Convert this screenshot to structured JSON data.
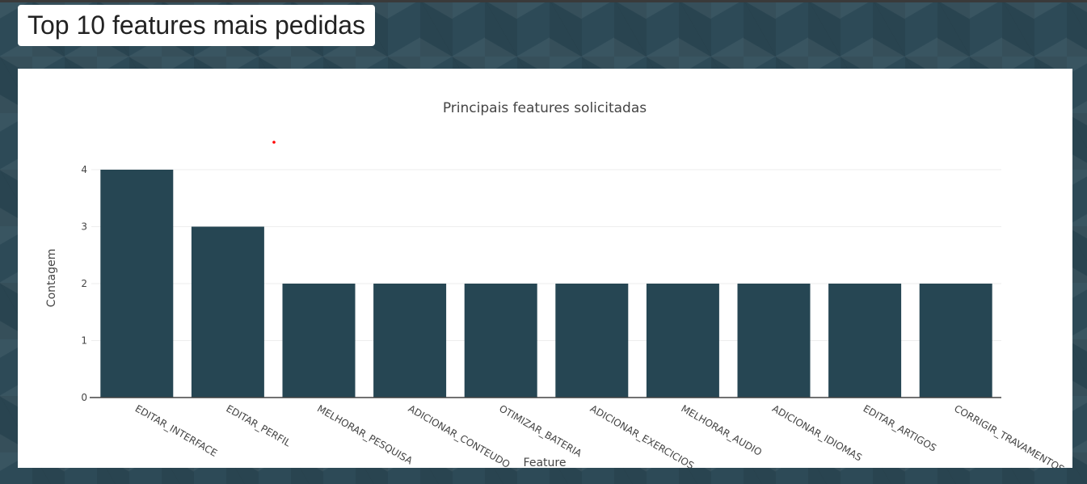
{
  "header": {
    "title": "Top 10 features mais pedidas"
  },
  "colors": {
    "bar": "#264653",
    "grid": "#eeeeee",
    "axis": "#444444",
    "marker": "#ff0000"
  },
  "chart_data": {
    "type": "bar",
    "title": "Principais features solicitadas",
    "xlabel": "Feature",
    "ylabel": "Contagem",
    "categories": [
      "EDITAR_INTERFACE",
      "EDITAR_PERFIL",
      "MELHORAR_PESQUISA",
      "ADICIONAR_CONTEUDO",
      "OTIMIZAR_BATERIA",
      "ADICIONAR_EXERCICIOS",
      "MELHORAR_AUDIO",
      "ADICIONAR_IDIOMAS",
      "EDITAR_ARTIGOS",
      "CORRIGIR_TRAVAMENTOS"
    ],
    "values": [
      4,
      3,
      2,
      2,
      2,
      2,
      2,
      2,
      2,
      2
    ],
    "ylim": [
      0,
      4
    ],
    "yticks": [
      0,
      1,
      2,
      3,
      4
    ],
    "grid": true
  }
}
